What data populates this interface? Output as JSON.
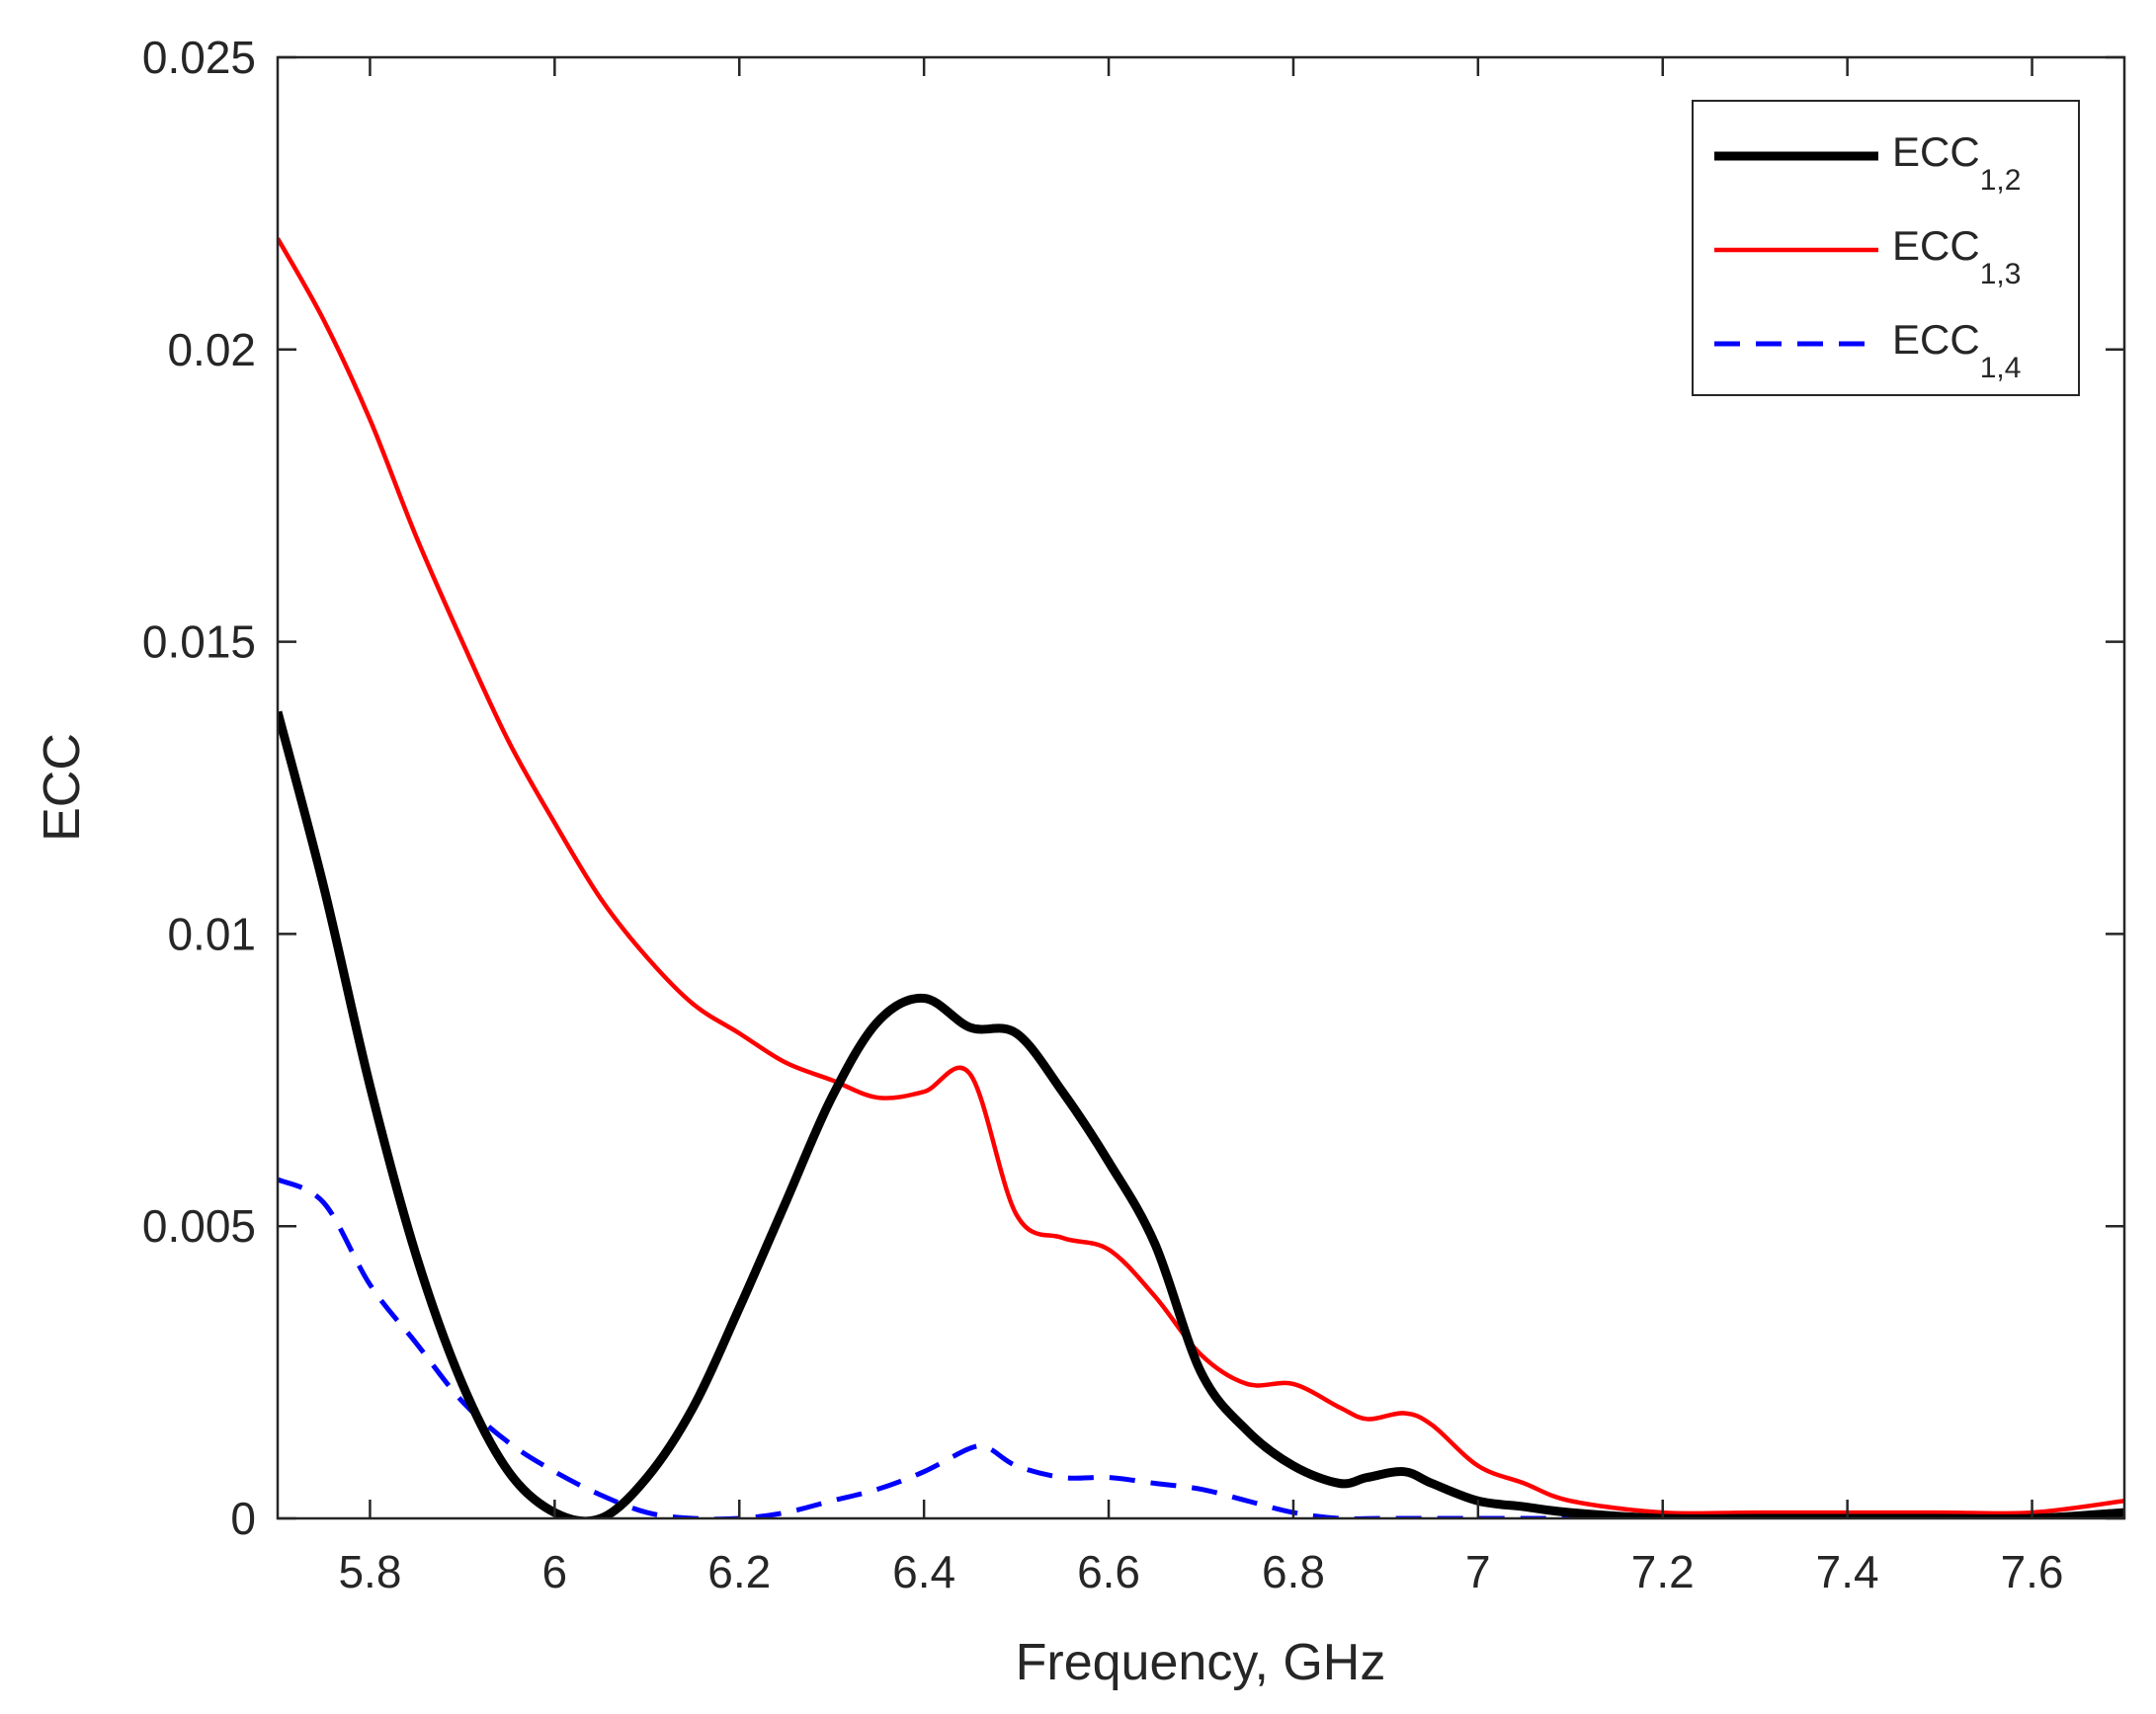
{
  "chart_data": {
    "type": "line",
    "title": "",
    "xlabel": "Frequency, GHz",
    "ylabel": "ECC",
    "xlim": [
      5.7,
      7.7
    ],
    "ylim": [
      0,
      0.025
    ],
    "xticks": [
      5.8,
      6.0,
      6.2,
      6.4,
      6.6,
      6.8,
      7.0,
      7.2,
      7.4,
      7.6
    ],
    "xtick_labels": [
      "5.8",
      "6",
      "6.2",
      "6.4",
      "6.6",
      "6.8",
      "7",
      "7.2",
      "7.4",
      "7.6"
    ],
    "yticks": [
      0,
      0.005,
      0.01,
      0.015,
      0.02,
      0.025
    ],
    "ytick_labels": [
      "0",
      "0.005",
      "0.01",
      "0.015",
      "0.02",
      "0.025"
    ],
    "legend_position": "top-right",
    "series": [
      {
        "name": "ECC",
        "subscript": "1,2",
        "color": "#000000",
        "dash": "solid",
        "x": [
          5.7,
          5.75,
          5.8,
          5.85,
          5.9,
          5.95,
          6.0,
          6.05,
          6.1,
          6.15,
          6.2,
          6.25,
          6.3,
          6.35,
          6.4,
          6.45,
          6.5,
          6.55,
          6.6,
          6.65,
          6.7,
          6.75,
          6.8,
          6.85,
          6.88,
          6.92,
          6.95,
          7.0,
          7.05,
          7.1,
          7.2,
          7.3,
          7.4,
          7.5,
          7.6,
          7.7
        ],
        "y": [
          0.0138,
          0.0108,
          0.0074,
          0.0045,
          0.0023,
          0.0008,
          0.0001,
          0.0,
          0.0007,
          0.0019,
          0.0036,
          0.0054,
          0.0072,
          0.0085,
          0.0089,
          0.0084,
          0.0083,
          0.0073,
          0.0061,
          0.0047,
          0.0025,
          0.0015,
          0.0009,
          0.0006,
          0.0007,
          0.0008,
          0.0006,
          0.0003,
          0.0002,
          0.0001,
          0.0,
          0.0,
          0.0,
          0.0,
          0.0,
          0.0001
        ]
      },
      {
        "name": "ECC",
        "subscript": "1,3",
        "color": "#ff0000",
        "dash": "solid",
        "x": [
          5.7,
          5.75,
          5.8,
          5.85,
          5.9,
          5.95,
          6.0,
          6.05,
          6.1,
          6.15,
          6.2,
          6.25,
          6.3,
          6.35,
          6.4,
          6.45,
          6.5,
          6.55,
          6.6,
          6.65,
          6.7,
          6.75,
          6.8,
          6.85,
          6.88,
          6.92,
          6.95,
          7.0,
          7.05,
          7.1,
          7.2,
          7.3,
          7.4,
          7.5,
          7.6,
          7.7
        ],
        "y": [
          0.0219,
          0.0205,
          0.0188,
          0.0168,
          0.015,
          0.0133,
          0.0119,
          0.0106,
          0.0096,
          0.0088,
          0.0083,
          0.0078,
          0.0075,
          0.0072,
          0.0073,
          0.0076,
          0.0052,
          0.0048,
          0.0046,
          0.0038,
          0.0028,
          0.0023,
          0.0023,
          0.0019,
          0.0017,
          0.0018,
          0.0016,
          0.0009,
          0.0006,
          0.0003,
          0.0001,
          0.0001,
          0.0001,
          0.0001,
          0.0001,
          0.0003
        ]
      },
      {
        "name": "ECC",
        "subscript": "1,4",
        "color": "#0000ff",
        "dash": "dashed",
        "x": [
          5.7,
          5.75,
          5.8,
          5.85,
          5.9,
          5.95,
          6.0,
          6.05,
          6.1,
          6.15,
          6.2,
          6.25,
          6.3,
          6.35,
          6.4,
          6.45,
          6.47,
          6.5,
          6.55,
          6.6,
          6.65,
          6.7,
          6.75,
          6.8,
          6.85,
          6.9,
          7.0,
          7.1,
          7.2,
          7.3,
          7.4,
          7.5,
          7.6,
          7.7
        ],
        "y": [
          0.0058,
          0.0054,
          0.004,
          0.003,
          0.002,
          0.0013,
          0.0008,
          0.0004,
          0.0001,
          0.0,
          0.0,
          0.0001,
          0.0003,
          0.0005,
          0.0008,
          0.0012,
          0.0012,
          0.0009,
          0.0007,
          0.0007,
          0.0006,
          0.0005,
          0.0003,
          0.0001,
          0.0,
          0.0,
          0.0,
          0.0,
          0.0,
          0.0,
          0.0,
          0.0,
          0.0,
          0.0001
        ]
      }
    ]
  }
}
